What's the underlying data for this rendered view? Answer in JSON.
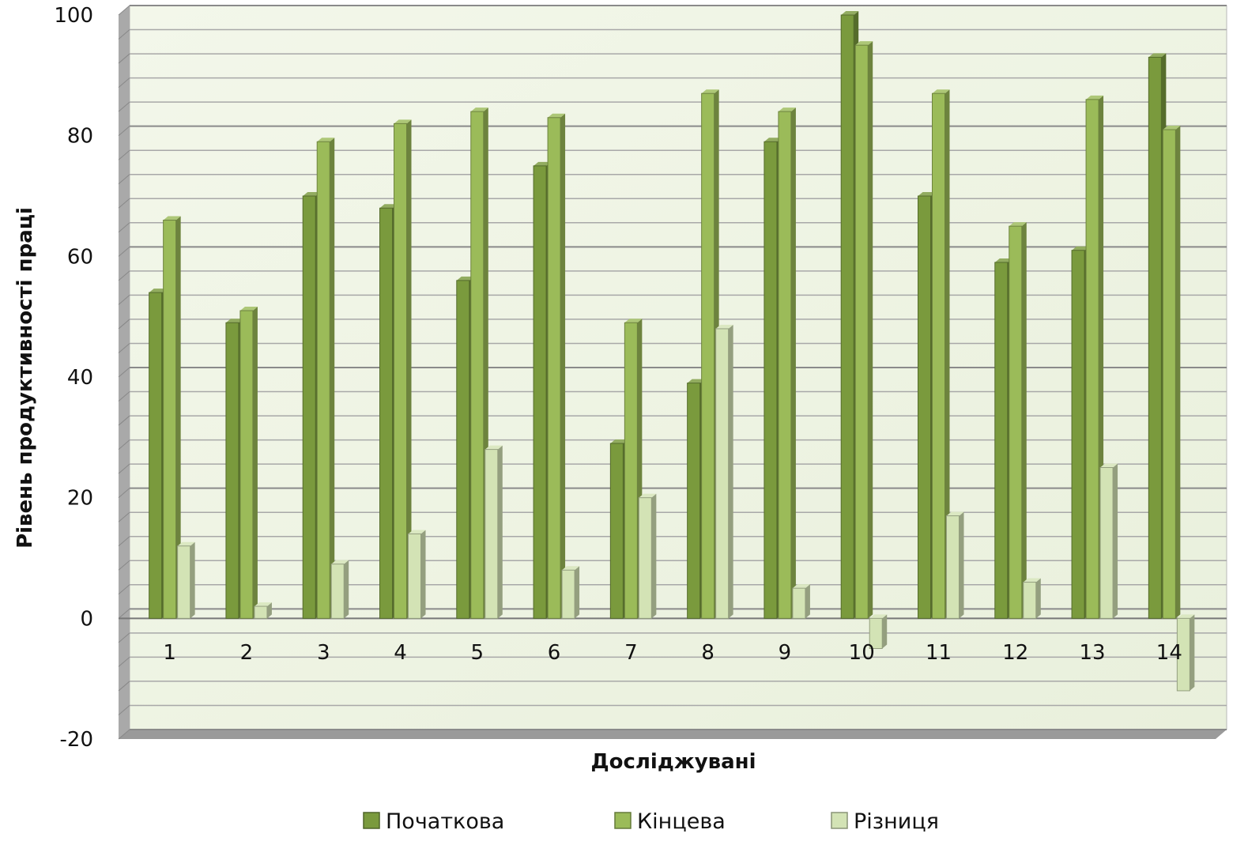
{
  "chart_data": {
    "type": "bar",
    "title": "",
    "xlabel": "Досліджувані",
    "ylabel": "Рівень продуктивності праці",
    "categories": [
      "1",
      "2",
      "3",
      "4",
      "5",
      "6",
      "7",
      "8",
      "9",
      "10",
      "11",
      "12",
      "13",
      "14"
    ],
    "series": [
      {
        "name": "Початкова",
        "color": "#7a9a3d",
        "values": [
          54,
          49,
          70,
          68,
          56,
          75,
          29,
          39,
          79,
          100,
          70,
          59,
          61,
          93
        ]
      },
      {
        "name": "Кінцева",
        "color": "#9bbb59",
        "values": [
          66,
          51,
          79,
          82,
          84,
          83,
          49,
          87,
          84,
          95,
          87,
          65,
          86,
          81
        ]
      },
      {
        "name": "Різниця",
        "color": "#d3e3b5",
        "values": [
          12,
          2,
          9,
          14,
          28,
          8,
          20,
          48,
          5,
          -5,
          17,
          6,
          25,
          -12
        ]
      }
    ],
    "ylim": [
      -20,
      100
    ],
    "yticks": [
      -20,
      0,
      20,
      40,
      60,
      80,
      100
    ],
    "grid": true,
    "legend": "bottom"
  }
}
